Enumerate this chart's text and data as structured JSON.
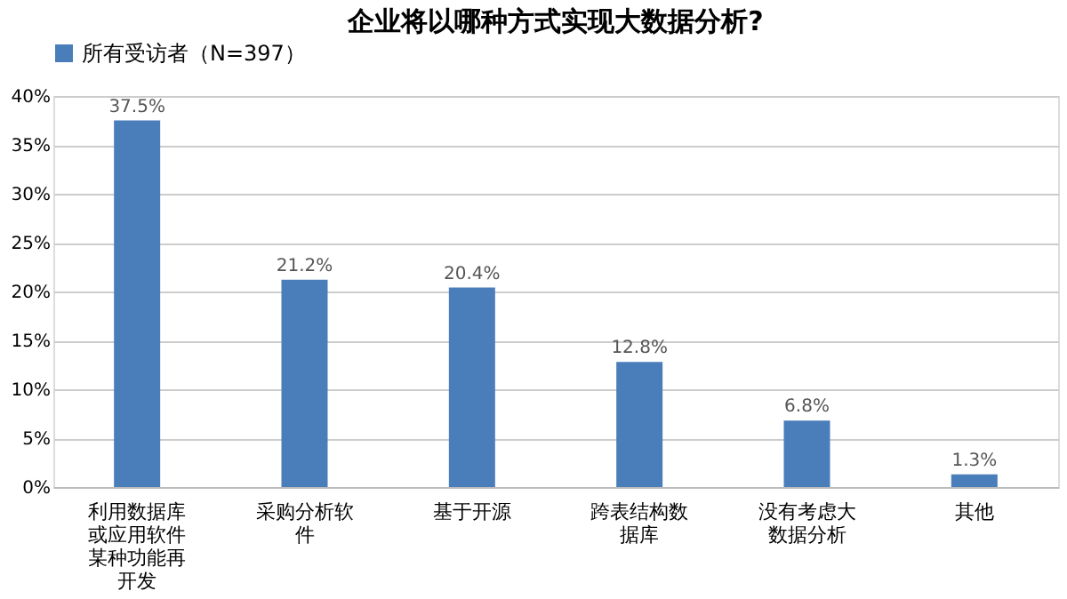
{
  "chart_data": {
    "type": "bar",
    "title": "企业将以哪种方式实现大数据分析?",
    "categories": [
      "利用数据库或应用软件某种功能再开发",
      "采购分析软件",
      "基于开源",
      "跨表结构数据库",
      "没有考虑大数据分析",
      "其他"
    ],
    "series": [
      {
        "name": "所有受访者（N=397）",
        "color": "#4a7ebb",
        "values": [
          37.5,
          21.2,
          20.4,
          12.8,
          6.8,
          1.3
        ],
        "value_labels": [
          "37.5%",
          "21.2%",
          "20.4%",
          "12.8%",
          "6.8%",
          "1.3%"
        ]
      }
    ],
    "ylim": [
      0,
      40
    ],
    "yticks": [
      {
        "value": 0,
        "label": "0%"
      },
      {
        "value": 5,
        "label": "5%"
      },
      {
        "value": 10,
        "label": "10%"
      },
      {
        "value": 15,
        "label": "15%"
      },
      {
        "value": 20,
        "label": "20%"
      },
      {
        "value": 25,
        "label": "25%"
      },
      {
        "value": 30,
        "label": "30%"
      },
      {
        "value": 35,
        "label": "35%"
      },
      {
        "value": 40,
        "label": "40%"
      }
    ],
    "grid": "y",
    "legend": "top"
  }
}
